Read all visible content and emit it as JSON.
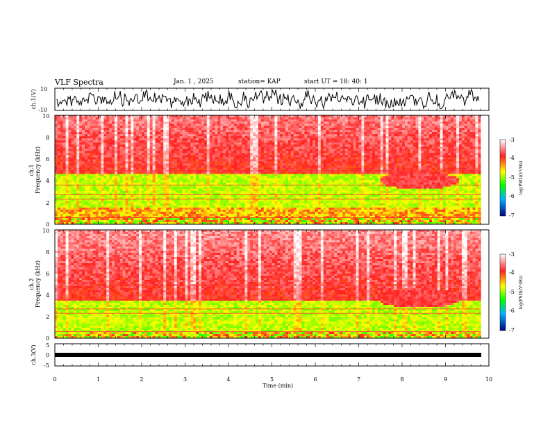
{
  "header": {
    "title": "VLF Spectra",
    "date": "Jan. 1 , 2025",
    "station": "station= KAP",
    "start": "start UT =  18: 40: 1"
  },
  "chart_data": [
    {
      "type": "line",
      "panel": "ch1-waveform",
      "ylabel": "ch.1(V)",
      "ylim": [
        -10,
        10
      ],
      "y_ticks": [
        "10",
        "-10"
      ],
      "xlim": [
        0,
        10
      ]
    },
    {
      "type": "heatmap",
      "panel": "ch1-spectrogram",
      "ylabel_line1": "ch.1",
      "ylabel_line2": "Frequency (kHz)",
      "ylim": [
        0,
        10
      ],
      "y_ticks": [
        "0",
        "2",
        "4",
        "6",
        "8",
        "10"
      ],
      "xlim": [
        0,
        10
      ],
      "colorbar": {
        "label": "log(PSD)(V²/Hz)",
        "ticks": [
          "-3",
          "-4",
          "-5",
          "-6",
          "-7"
        ],
        "range": [
          -7,
          -3
        ]
      },
      "features": {
        "green_band_khz": [
          1.5,
          4.6
        ],
        "enhancement_minutes": [
          7.5,
          9.3
        ],
        "enhancement_khz": [
          3.2,
          4.8
        ]
      }
    },
    {
      "type": "heatmap",
      "panel": "ch2-spectrogram",
      "ylabel_line1": "ch.2",
      "ylabel_line2": "Frequency (kHz)",
      "ylim": [
        0,
        10
      ],
      "y_ticks": [
        "0",
        "2",
        "4",
        "6",
        "8",
        "10"
      ],
      "xlim": [
        0,
        10
      ],
      "colorbar": {
        "label": "log(PSD)(V²/Hz)",
        "ticks": [
          "-3",
          "-4",
          "-5",
          "-6",
          "-7"
        ],
        "range": [
          -7,
          -3
        ]
      },
      "features": {
        "green_band_khz": [
          0.5,
          3.5
        ],
        "enhancement_minutes": [
          7.4,
          9.4
        ],
        "enhancement_khz": [
          2.8,
          4.6
        ]
      }
    },
    {
      "type": "line",
      "panel": "ch3-waveform",
      "ylabel": "ch.3(V)",
      "ylim": [
        -5,
        5
      ],
      "y_ticks": [
        "5",
        "0",
        "-5"
      ],
      "xlim": [
        0,
        10
      ]
    }
  ],
  "xaxis": {
    "label": "Time (min)",
    "ticks": [
      "0",
      "1",
      "2",
      "3",
      "4",
      "5",
      "6",
      "7",
      "8",
      "9",
      "10"
    ]
  }
}
